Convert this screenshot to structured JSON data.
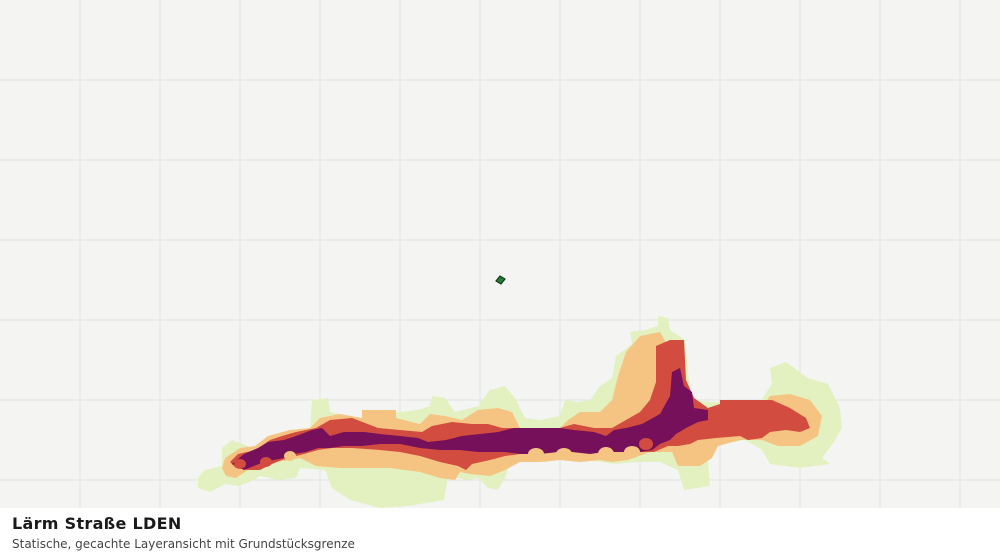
{
  "layer": {
    "title": "Lärm Straße LDEN",
    "subtitle": "Statische, gecachte Layeransicht mit Grundstücksgrenze"
  },
  "legend_colors": {
    "zone_1": "#e3f1c0",
    "zone_2": "#f5c483",
    "zone_3": "#d24c40",
    "zone_4": "#76105a",
    "parcel": "#2b7a3a"
  },
  "map": {
    "background": "#f4f5f3",
    "grid": true
  }
}
